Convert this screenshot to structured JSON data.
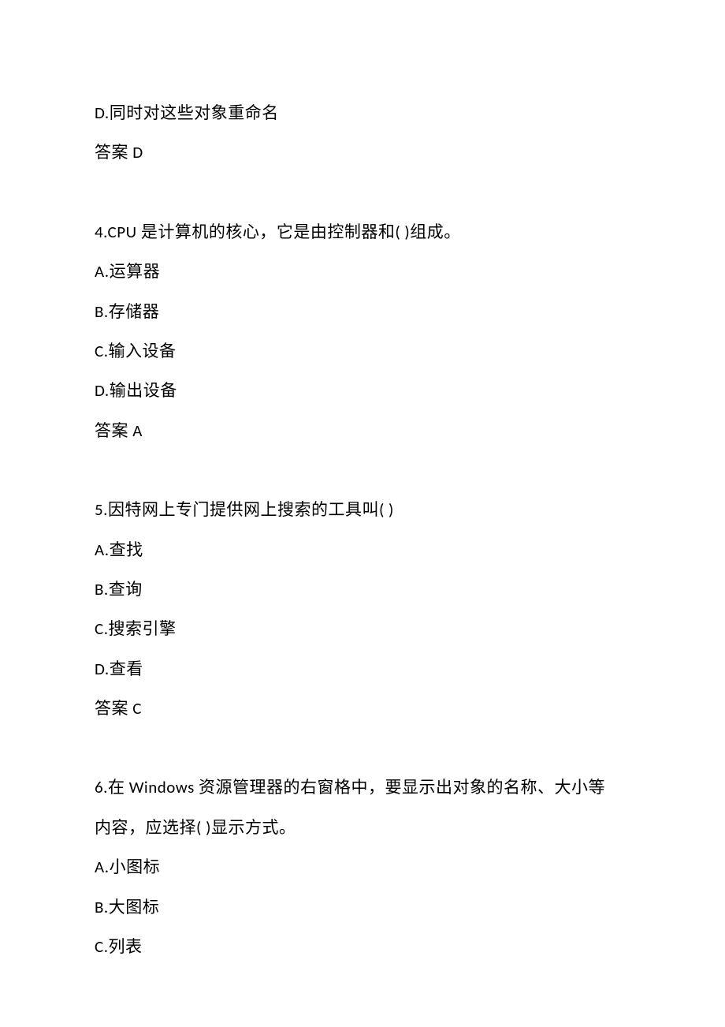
{
  "q3": {
    "option_d": "D.同时对这些对象重命名",
    "answer": "答案 D"
  },
  "q4": {
    "stem": "4.CPU 是计算机的核心，它是由控制器和( )组成。",
    "option_a": "A.运算器",
    "option_b": "B.存储器",
    "option_c": "C.输入设备",
    "option_d": "D.输出设备",
    "answer": "答案 A"
  },
  "q5": {
    "stem": "5.因特网上专门提供网上搜索的工具叫( )",
    "option_a": "A.查找",
    "option_b": "B.查询",
    "option_c": "C.搜索引擎",
    "option_d": "D.查看",
    "answer": "答案 C"
  },
  "q6": {
    "stem_line1": "6.在 Windows 资源管理器的右窗格中，要显示出对象的名称、大小等",
    "stem_line2": "内容，应选择( )显示方式。",
    "option_a": "A.小图标",
    "option_b": "B.大图标",
    "option_c": "C.列表"
  }
}
